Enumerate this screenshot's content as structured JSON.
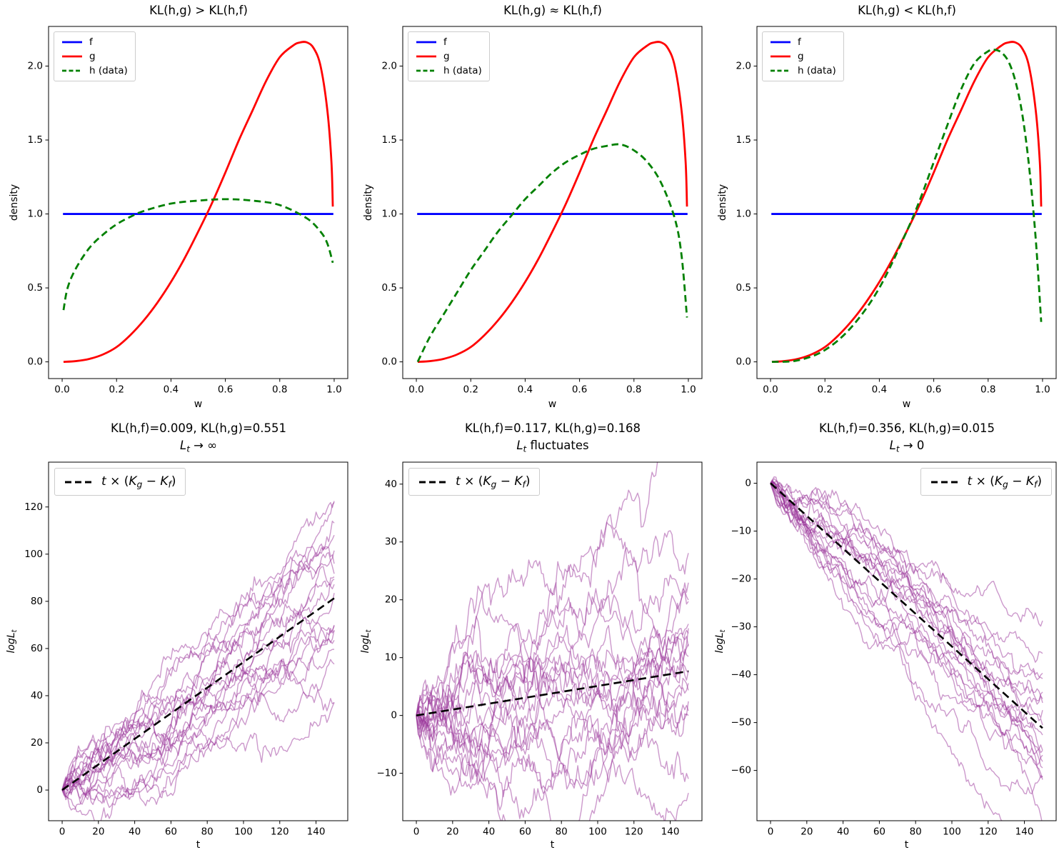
{
  "figure_kind": "matplotlib-2x3-subplots",
  "style": {
    "background": "#ffffff",
    "f_color": "#0000ff",
    "g_color": "#ff0000",
    "h_color": "#008000",
    "walk_color": "#993399",
    "guide_color": "#000000",
    "spine_color": "#000000"
  },
  "chart_data": [
    {
      "type": "line",
      "row": "top",
      "title": "KL(h,g) > KL(h,f)",
      "xlabel": "w",
      "ylabel": "density",
      "xlim": [
        -0.05,
        1.05
      ],
      "ylim": [
        -0.113,
        2.268
      ],
      "xticks": [
        0.0,
        0.2,
        0.4,
        0.6,
        0.8,
        1.0
      ],
      "xtick_labels": [
        "0.0",
        "0.2",
        "0.4",
        "0.6",
        "0.8",
        "1.0"
      ],
      "yticks": [
        0.0,
        0.5,
        1.0,
        1.5,
        2.0
      ],
      "ytick_labels": [
        "0.0",
        "0.5",
        "1.0",
        "1.5",
        "2.0"
      ],
      "legend_loc": "upper-left",
      "grid": false,
      "series": [
        {
          "label": "f",
          "color": "#0000ff",
          "dash": false,
          "x": [
            0.003,
            0.997
          ],
          "y": [
            1.0,
            1.0
          ]
        },
        {
          "label": "g",
          "color": "#ff0000",
          "dash": false,
          "x": [
            0.005,
            0.05,
            0.1,
            0.15,
            0.2,
            0.25,
            0.3,
            0.35,
            0.4,
            0.45,
            0.5,
            0.55,
            0.6,
            0.65,
            0.7,
            0.75,
            0.8,
            0.85,
            0.875,
            0.9,
            0.925,
            0.95,
            0.975,
            0.99,
            0.995
          ],
          "y": [
            0.0,
            0.005,
            0.02,
            0.05,
            0.1,
            0.18,
            0.28,
            0.4,
            0.54,
            0.7,
            0.88,
            1.07,
            1.28,
            1.5,
            1.7,
            1.9,
            2.06,
            2.14,
            2.16,
            2.16,
            2.12,
            2.0,
            1.7,
            1.35,
            1.05
          ]
        },
        {
          "label": "h (data)",
          "color": "#008000",
          "dash": true,
          "x": [
            0.005,
            0.02,
            0.05,
            0.1,
            0.15,
            0.2,
            0.25,
            0.3,
            0.4,
            0.5,
            0.6,
            0.7,
            0.8,
            0.9,
            0.95,
            0.975,
            0.995
          ],
          "y": [
            0.35,
            0.5,
            0.63,
            0.77,
            0.86,
            0.93,
            0.98,
            1.02,
            1.07,
            1.09,
            1.1,
            1.09,
            1.06,
            0.97,
            0.88,
            0.8,
            0.67
          ]
        }
      ]
    },
    {
      "type": "line",
      "row": "top",
      "title": "KL(h,g) ≈ KL(h,f)",
      "xlabel": "w",
      "ylabel": "density",
      "xlim": [
        -0.05,
        1.05
      ],
      "ylim": [
        -0.113,
        2.268
      ],
      "xticks": [
        0.0,
        0.2,
        0.4,
        0.6,
        0.8,
        1.0
      ],
      "xtick_labels": [
        "0.0",
        "0.2",
        "0.4",
        "0.6",
        "0.8",
        "1.0"
      ],
      "yticks": [
        0.0,
        0.5,
        1.0,
        1.5,
        2.0
      ],
      "ytick_labels": [
        "0.0",
        "0.5",
        "1.0",
        "1.5",
        "2.0"
      ],
      "legend_loc": "upper-left",
      "grid": false,
      "series": [
        {
          "label": "f",
          "color": "#0000ff",
          "dash": false,
          "x": [
            0.003,
            0.997
          ],
          "y": [
            1.0,
            1.0
          ]
        },
        {
          "label": "g",
          "color": "#ff0000",
          "dash": false,
          "x": [
            0.005,
            0.05,
            0.1,
            0.15,
            0.2,
            0.25,
            0.3,
            0.35,
            0.4,
            0.45,
            0.5,
            0.55,
            0.6,
            0.65,
            0.7,
            0.75,
            0.8,
            0.85,
            0.875,
            0.9,
            0.925,
            0.95,
            0.975,
            0.99,
            0.995
          ],
          "y": [
            0.0,
            0.005,
            0.02,
            0.05,
            0.1,
            0.18,
            0.28,
            0.4,
            0.54,
            0.7,
            0.88,
            1.07,
            1.28,
            1.5,
            1.7,
            1.9,
            2.06,
            2.14,
            2.16,
            2.16,
            2.12,
            2.0,
            1.7,
            1.35,
            1.05
          ]
        },
        {
          "label": "h (data)",
          "color": "#008000",
          "dash": true,
          "x": [
            0.005,
            0.05,
            0.1,
            0.15,
            0.2,
            0.25,
            0.3,
            0.35,
            0.4,
            0.45,
            0.5,
            0.55,
            0.6,
            0.65,
            0.7,
            0.75,
            0.8,
            0.85,
            0.9,
            0.95,
            0.975,
            0.995
          ],
          "y": [
            0.0,
            0.17,
            0.32,
            0.47,
            0.62,
            0.75,
            0.88,
            0.99,
            1.1,
            1.19,
            1.28,
            1.35,
            1.4,
            1.44,
            1.46,
            1.47,
            1.43,
            1.35,
            1.21,
            0.97,
            0.72,
            0.3
          ]
        }
      ]
    },
    {
      "type": "line",
      "row": "top",
      "title": "KL(h,g) < KL(h,f)",
      "xlabel": "w",
      "ylabel": "density",
      "xlim": [
        -0.05,
        1.05
      ],
      "ylim": [
        -0.113,
        2.268
      ],
      "xticks": [
        0.0,
        0.2,
        0.4,
        0.6,
        0.8,
        1.0
      ],
      "xtick_labels": [
        "0.0",
        "0.2",
        "0.4",
        "0.6",
        "0.8",
        "1.0"
      ],
      "yticks": [
        0.0,
        0.5,
        1.0,
        1.5,
        2.0
      ],
      "ytick_labels": [
        "0.0",
        "0.5",
        "1.0",
        "1.5",
        "2.0"
      ],
      "legend_loc": "upper-left",
      "grid": false,
      "series": [
        {
          "label": "f",
          "color": "#0000ff",
          "dash": false,
          "x": [
            0.003,
            0.997
          ],
          "y": [
            1.0,
            1.0
          ]
        },
        {
          "label": "g",
          "color": "#ff0000",
          "dash": false,
          "x": [
            0.005,
            0.05,
            0.1,
            0.15,
            0.2,
            0.25,
            0.3,
            0.35,
            0.4,
            0.45,
            0.5,
            0.55,
            0.6,
            0.65,
            0.7,
            0.75,
            0.8,
            0.85,
            0.875,
            0.9,
            0.925,
            0.95,
            0.975,
            0.99,
            0.995
          ],
          "y": [
            0.0,
            0.005,
            0.02,
            0.05,
            0.1,
            0.18,
            0.28,
            0.4,
            0.54,
            0.7,
            0.88,
            1.07,
            1.28,
            1.5,
            1.7,
            1.9,
            2.06,
            2.14,
            2.16,
            2.16,
            2.12,
            2.0,
            1.7,
            1.35,
            1.05
          ]
        },
        {
          "label": "h (data)",
          "color": "#008000",
          "dash": true,
          "x": [
            0.005,
            0.1,
            0.2,
            0.3,
            0.4,
            0.5,
            0.55,
            0.6,
            0.65,
            0.7,
            0.75,
            0.8,
            0.825,
            0.85,
            0.875,
            0.9,
            0.925,
            0.95,
            0.975,
            0.995
          ],
          "y": [
            0.0,
            0.01,
            0.08,
            0.24,
            0.5,
            0.88,
            1.1,
            1.35,
            1.6,
            1.84,
            2.02,
            2.1,
            2.11,
            2.09,
            2.03,
            1.9,
            1.68,
            1.33,
            0.83,
            0.27
          ]
        }
      ]
    },
    {
      "type": "line",
      "row": "bottom",
      "title_line1": "KL(h,f)=0.009, KL(h,g)=0.551",
      "title_line2_parts": [
        {
          "t": "L",
          "i": true
        },
        {
          "t": "t",
          "i": true,
          "sub": true
        },
        {
          "t": " → ∞"
        }
      ],
      "kl": {
        "h_f": 0.009,
        "h_g": 0.551
      },
      "xlabel": "t",
      "ylabel_parts": [
        {
          "t": "logL",
          "i": true
        },
        {
          "t": "t",
          "i": true,
          "sub": true
        }
      ],
      "xlim": [
        -7.5,
        157.5
      ],
      "ylim": [
        -13,
        139
      ],
      "xticks": [
        0,
        20,
        40,
        60,
        80,
        100,
        120,
        140
      ],
      "xtick_labels": [
        "0",
        "20",
        "40",
        "60",
        "80",
        "100",
        "120",
        "140"
      ],
      "yticks": [
        0,
        20,
        40,
        60,
        80,
        100,
        120
      ],
      "ytick_labels": [
        "0",
        "20",
        "40",
        "60",
        "80",
        "100",
        "120"
      ],
      "legend_loc": "upper-left",
      "grid": false,
      "guide": {
        "slope": 0.542,
        "t_end": 150,
        "color": "#000000",
        "dash": true,
        "label_parts": [
          {
            "t": "t",
            "i": true
          },
          {
            "t": " × ("
          },
          {
            "t": "K",
            "i": true
          },
          {
            "t": "g",
            "i": true,
            "sub": true
          },
          {
            "t": " − "
          },
          {
            "t": "K",
            "i": true
          },
          {
            "t": "f",
            "i": true,
            "sub": true
          },
          {
            "t": ")"
          }
        ]
      },
      "walks": {
        "n_paths": 20,
        "n_steps": 150,
        "drift": 0.542,
        "sigma": 1.9,
        "seed": 20240,
        "color": "#993399",
        "opacity": 0.5
      }
    },
    {
      "type": "line",
      "row": "bottom",
      "title_line1": "KL(h,f)=0.117, KL(h,g)=0.168",
      "title_line2_parts": [
        {
          "t": "L",
          "i": true
        },
        {
          "t": "t",
          "i": true,
          "sub": true
        },
        {
          "t": " fluctuates"
        }
      ],
      "kl": {
        "h_f": 0.117,
        "h_g": 0.168
      },
      "xlabel": "t",
      "ylabel_parts": [
        {
          "t": "logL",
          "i": true
        },
        {
          "t": "t",
          "i": true,
          "sub": true
        }
      ],
      "xlim": [
        -7.5,
        157.5
      ],
      "ylim": [
        -18.2,
        43.8
      ],
      "xticks": [
        0,
        20,
        40,
        60,
        80,
        100,
        120,
        140
      ],
      "xtick_labels": [
        "0",
        "20",
        "40",
        "60",
        "80",
        "100",
        "120",
        "140"
      ],
      "yticks": [
        -10,
        0,
        10,
        20,
        30,
        40
      ],
      "ytick_labels": [
        "−10",
        "0",
        "10",
        "20",
        "30",
        "40"
      ],
      "legend_loc": "upper-left",
      "grid": false,
      "guide": {
        "slope": 0.051,
        "t_end": 150,
        "color": "#000000",
        "dash": true,
        "label_parts": [
          {
            "t": "t",
            "i": true
          },
          {
            "t": " × ("
          },
          {
            "t": "K",
            "i": true
          },
          {
            "t": "g",
            "i": true,
            "sub": true
          },
          {
            "t": " − "
          },
          {
            "t": "K",
            "i": true
          },
          {
            "t": "f",
            "i": true,
            "sub": true
          },
          {
            "t": ")"
          }
        ]
      },
      "walks": {
        "n_paths": 20,
        "n_steps": 150,
        "drift": 0.051,
        "sigma": 1.35,
        "seed": 777,
        "color": "#993399",
        "opacity": 0.5
      }
    },
    {
      "type": "line",
      "row": "bottom",
      "title_line1": "KL(h,f)=0.356, KL(h,g)=0.015",
      "title_line2_parts": [
        {
          "t": "L",
          "i": true
        },
        {
          "t": "t",
          "i": true,
          "sub": true
        },
        {
          "t": " → 0"
        }
      ],
      "kl": {
        "h_f": 0.356,
        "h_g": 0.015
      },
      "xlabel": "t",
      "ylabel_parts": [
        {
          "t": "logL",
          "i": true
        },
        {
          "t": "t",
          "i": true,
          "sub": true
        }
      ],
      "xlim": [
        -7.5,
        157.5
      ],
      "ylim": [
        -70.5,
        4.4
      ],
      "xticks": [
        0,
        20,
        40,
        60,
        80,
        100,
        120,
        140
      ],
      "xtick_labels": [
        "0",
        "20",
        "40",
        "60",
        "80",
        "100",
        "120",
        "140"
      ],
      "yticks": [
        -60,
        -50,
        -40,
        -30,
        -20,
        -10,
        0
      ],
      "ytick_labels": [
        "−60",
        "−50",
        "−40",
        "−30",
        "−20",
        "−10",
        "0"
      ],
      "legend_loc": "upper-right",
      "grid": false,
      "guide": {
        "slope": -0.341,
        "t_end": 150,
        "color": "#000000",
        "dash": true,
        "label_parts": [
          {
            "t": "t",
            "i": true
          },
          {
            "t": " × ("
          },
          {
            "t": "K",
            "i": true
          },
          {
            "t": "g",
            "i": true,
            "sub": true
          },
          {
            "t": " − "
          },
          {
            "t": "K",
            "i": true
          },
          {
            "t": "f",
            "i": true,
            "sub": true
          },
          {
            "t": ")"
          }
        ]
      },
      "walks": {
        "n_paths": 20,
        "n_steps": 150,
        "drift": -0.341,
        "sigma": 0.8,
        "seed": 4242,
        "color": "#993399",
        "opacity": 0.5
      }
    }
  ]
}
